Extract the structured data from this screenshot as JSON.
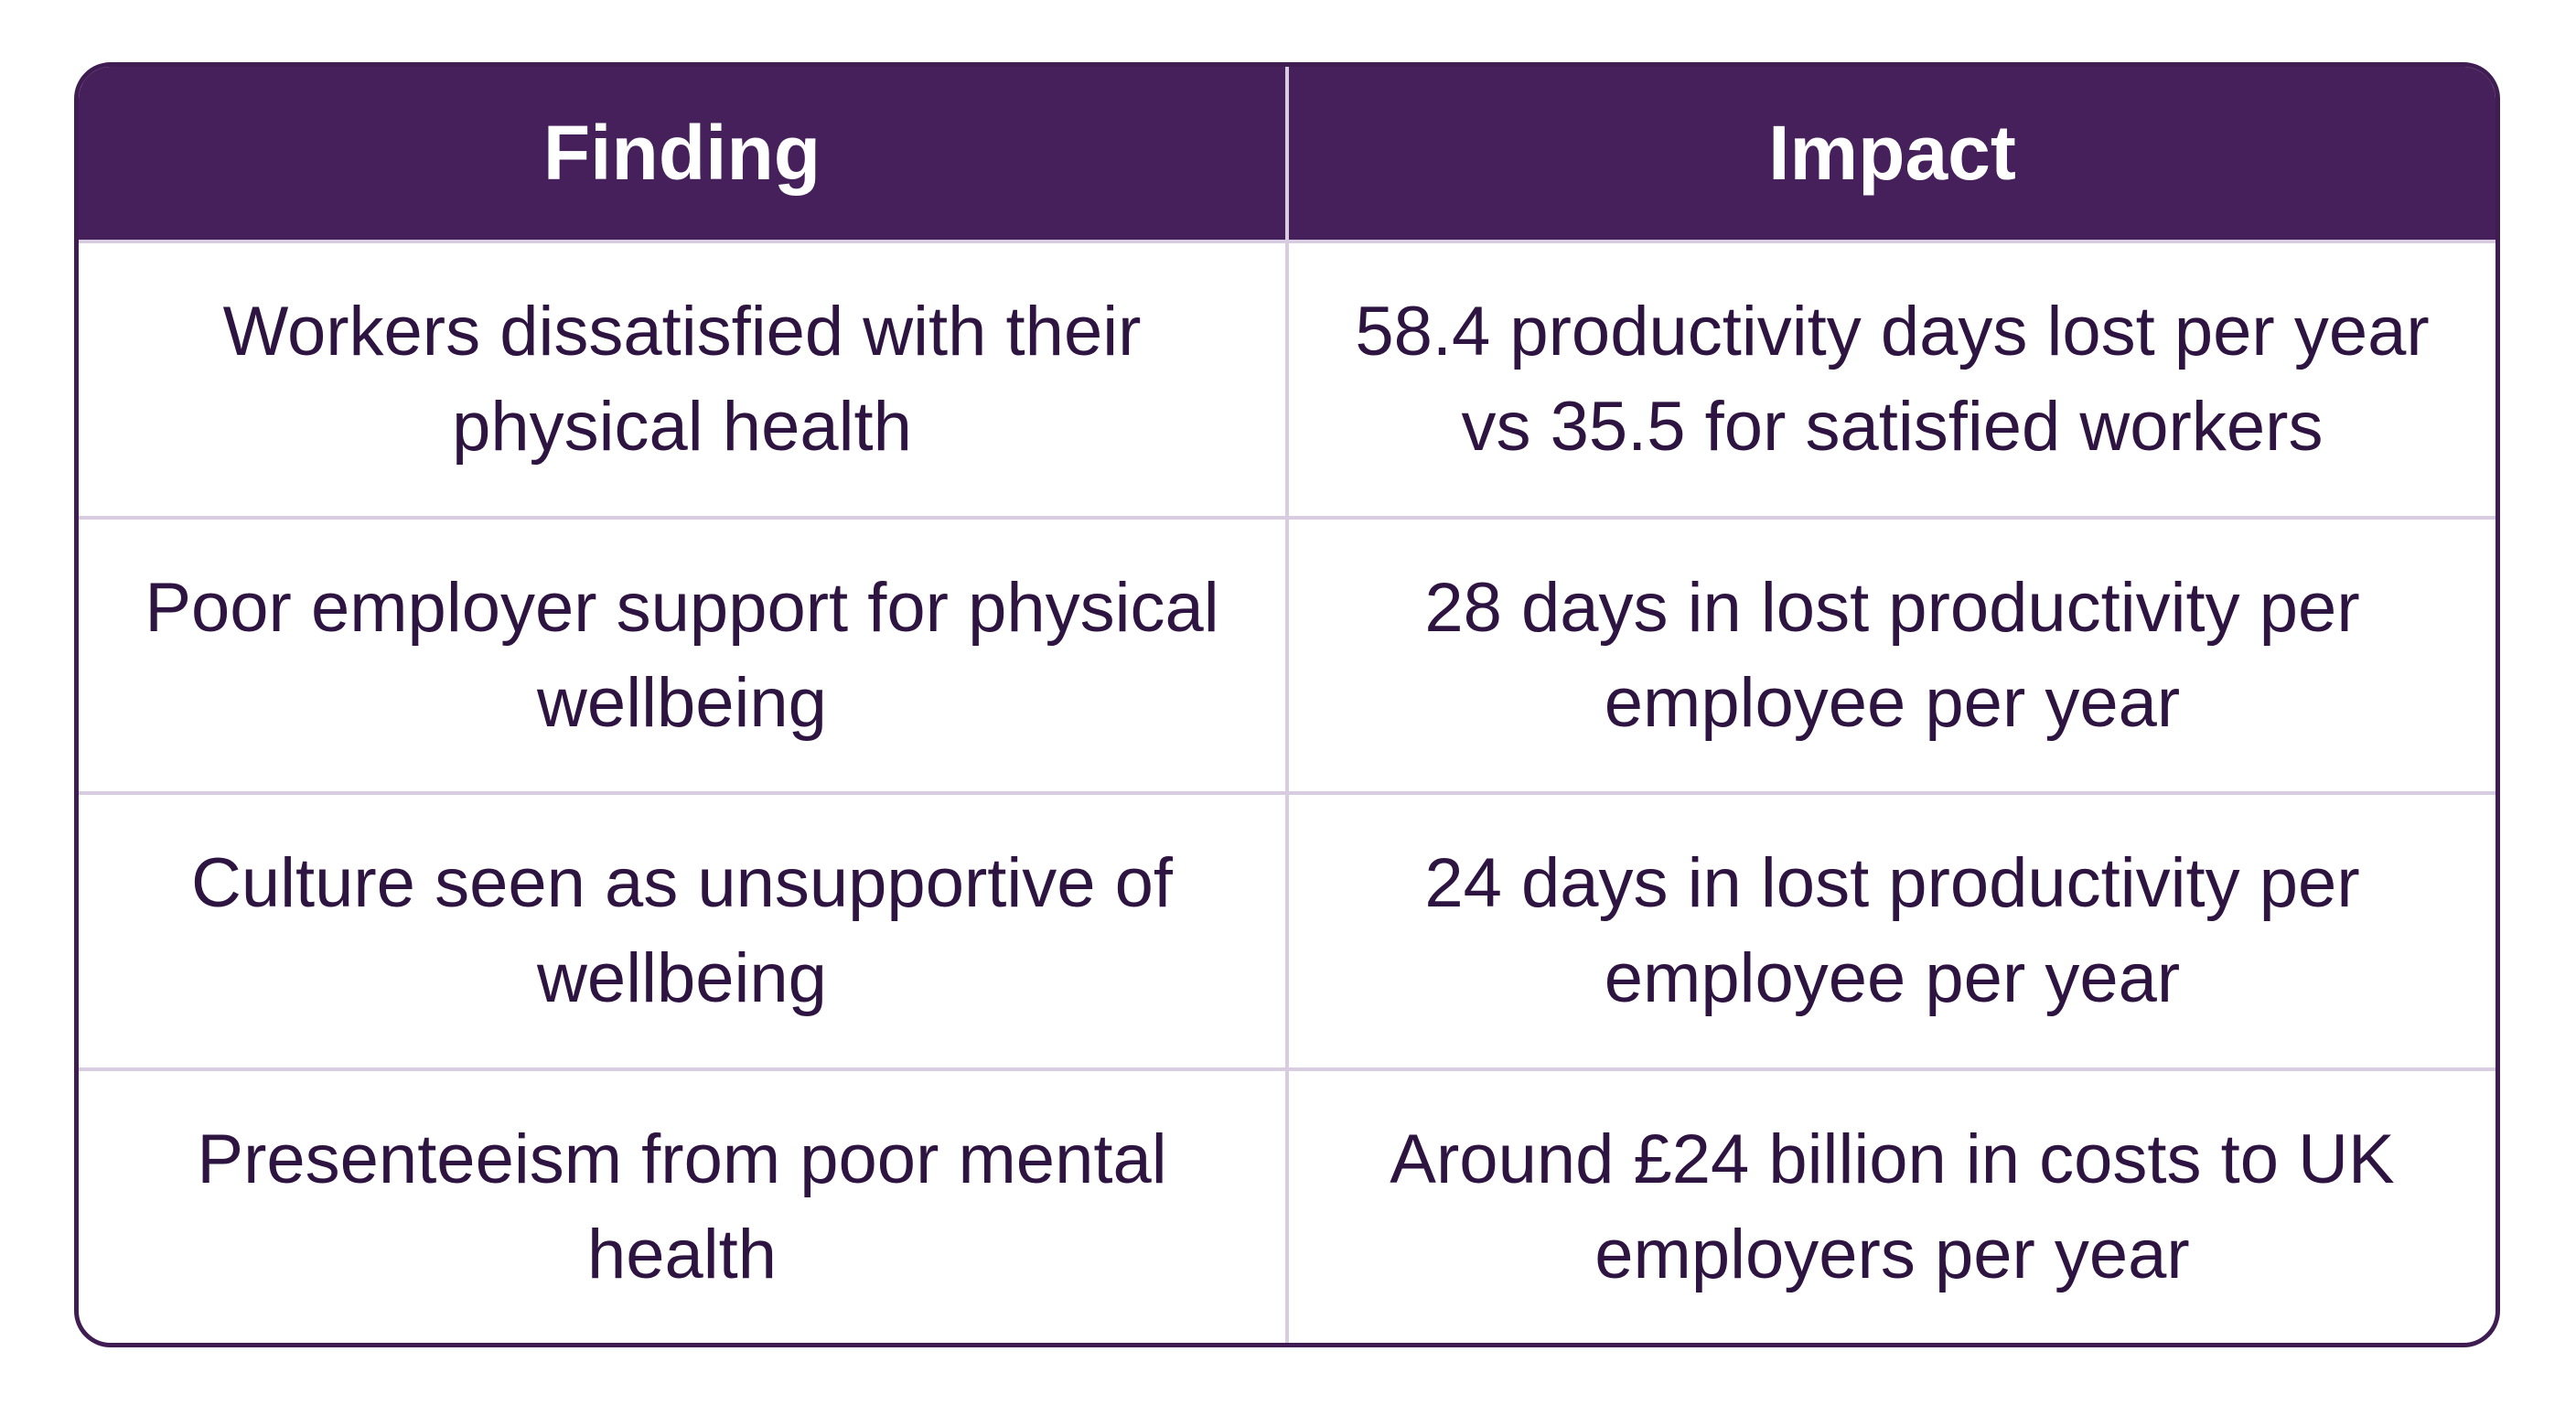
{
  "table": {
    "header": [
      "Finding",
      "Impact"
    ],
    "rows": [
      [
        "Workers dissatisfied with their physical health",
        "58.4 productivity days lost per year vs 35.5 for satisfied workers"
      ],
      [
        "Poor employer support for physical wellbeing",
        "28 days in lost productivity per employee per year"
      ],
      [
        "Culture seen as unsupportive of wellbeing",
        "24 days in lost productivity per employee per year"
      ],
      [
        "Presenteeism from poor mental health",
        "Around £24 billion in costs to UK employers per year"
      ]
    ]
  }
}
